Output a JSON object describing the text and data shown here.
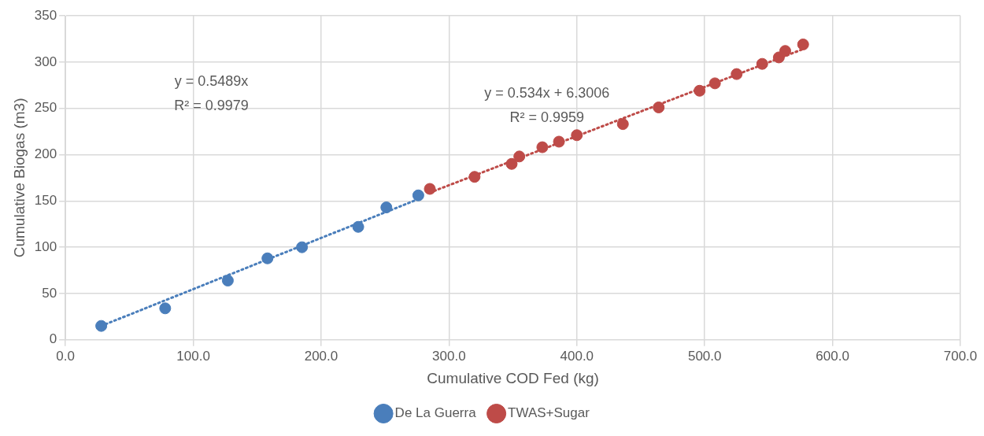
{
  "chart_data": {
    "type": "scatter",
    "xlabel": "Cumulative COD Fed (kg)",
    "ylabel": "Cumulative Biogas (m3)",
    "xlim": [
      0,
      700
    ],
    "xticks": [
      {
        "value": 0,
        "label": "0.0"
      },
      {
        "value": 100,
        "label": "100.0"
      },
      {
        "value": 200,
        "label": "200.0"
      },
      {
        "value": 300,
        "label": "300.0"
      },
      {
        "value": 400,
        "label": "400.0"
      },
      {
        "value": 500,
        "label": "500.0"
      },
      {
        "value": 600,
        "label": "600.0"
      },
      {
        "value": 700,
        "label": "700.0"
      }
    ],
    "ylim": [
      0,
      350
    ],
    "yticks": [
      0,
      50,
      100,
      150,
      200,
      250,
      300,
      350
    ],
    "grid": true,
    "legend": "bottom",
    "marker": "circle",
    "series": [
      {
        "name": "De La Guerra",
        "color": "#4a7ebb",
        "x": [
          28,
          78,
          127,
          158,
          185,
          229,
          251,
          276
        ],
        "values": [
          15,
          34,
          64,
          88,
          100,
          122,
          143,
          156
        ]
      },
      {
        "name": "TWAS+Sugar",
        "color": "#be4b48",
        "x": [
          285,
          320,
          349,
          355,
          373,
          386,
          400,
          436,
          464,
          496,
          508,
          525,
          545,
          558,
          563,
          577
        ],
        "values": [
          163,
          176,
          190,
          198,
          208,
          214,
          221,
          233,
          251,
          269,
          277,
          287,
          298,
          305,
          312,
          319
        ]
      },
      {
        "type": "line",
        "color": "#4a7ebb",
        "line_style": "dotted",
        "marker": "none",
        "x": [
          28,
          276
        ],
        "values": [
          15,
          152
        ]
      },
      {
        "type": "line",
        "color": "#be4b48",
        "line_style": "dotted",
        "marker": "none",
        "x": [
          285,
          577
        ],
        "values": [
          159,
          314
        ]
      }
    ],
    "annotations": [
      "y = 0.5489x",
      "R² = 0.9979",
      "y = 0.534x + 6.3006",
      "R² = 0.9959"
    ]
  }
}
